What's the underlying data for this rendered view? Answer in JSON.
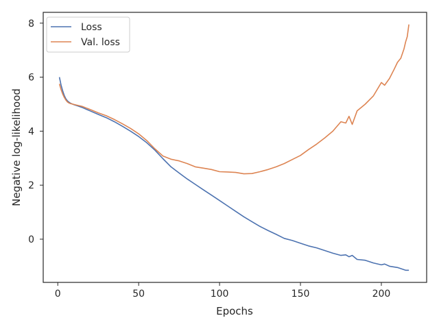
{
  "chart_data": {
    "type": "line",
    "xlabel": "Epochs",
    "ylabel": "Negative log-likelihood",
    "xlim": [
      -9,
      228
    ],
    "ylim": [
      -1.6,
      8.4
    ],
    "xticks": [
      0,
      50,
      100,
      150,
      200
    ],
    "yticks": [
      0,
      2,
      4,
      6,
      8
    ],
    "grid": false,
    "legend": "top-left",
    "series": [
      {
        "name": "Loss",
        "color": "#4c72b0",
        "x": [
          1,
          2,
          3,
          4,
          5,
          6,
          7,
          8,
          10,
          12,
          15,
          20,
          25,
          30,
          35,
          40,
          45,
          50,
          55,
          60,
          65,
          70,
          75,
          80,
          85,
          90,
          95,
          100,
          105,
          110,
          115,
          120,
          125,
          130,
          135,
          140,
          145,
          150,
          155,
          160,
          165,
          170,
          175,
          178,
          180,
          182,
          185,
          190,
          195,
          200,
          202,
          205,
          210,
          215,
          217
        ],
        "y": [
          6.0,
          5.72,
          5.5,
          5.32,
          5.2,
          5.12,
          5.07,
          5.03,
          4.98,
          4.94,
          4.88,
          4.75,
          4.62,
          4.5,
          4.35,
          4.18,
          4.0,
          3.8,
          3.57,
          3.3,
          2.98,
          2.68,
          2.45,
          2.23,
          2.03,
          1.83,
          1.63,
          1.43,
          1.23,
          1.03,
          0.83,
          0.65,
          0.47,
          0.32,
          0.18,
          0.03,
          -0.05,
          -0.15,
          -0.25,
          -0.32,
          -0.42,
          -0.52,
          -0.6,
          -0.58,
          -0.65,
          -0.6,
          -0.75,
          -0.78,
          -0.88,
          -0.95,
          -0.92,
          -1.0,
          -1.05,
          -1.15,
          -1.15
        ]
      },
      {
        "name": "Val. loss",
        "color": "#dd8452",
        "x": [
          1,
          2,
          3,
          4,
          5,
          6,
          7,
          8,
          10,
          12,
          15,
          20,
          25,
          30,
          35,
          40,
          45,
          50,
          55,
          60,
          65,
          70,
          75,
          80,
          85,
          90,
          95,
          100,
          105,
          110,
          115,
          120,
          125,
          130,
          135,
          140,
          145,
          150,
          155,
          160,
          165,
          170,
          175,
          178,
          180,
          182,
          185,
          190,
          195,
          200,
          202,
          205,
          208,
          210,
          212,
          214,
          215,
          216,
          217
        ],
        "y": [
          5.75,
          5.55,
          5.38,
          5.25,
          5.15,
          5.08,
          5.04,
          5.02,
          4.99,
          4.96,
          4.92,
          4.8,
          4.68,
          4.57,
          4.43,
          4.27,
          4.1,
          3.9,
          3.65,
          3.35,
          3.08,
          2.96,
          2.9,
          2.8,
          2.68,
          2.63,
          2.58,
          2.5,
          2.49,
          2.47,
          2.42,
          2.43,
          2.5,
          2.58,
          2.68,
          2.8,
          2.95,
          3.1,
          3.32,
          3.52,
          3.75,
          4.0,
          4.35,
          4.3,
          4.55,
          4.25,
          4.75,
          5.0,
          5.3,
          5.8,
          5.7,
          5.95,
          6.3,
          6.55,
          6.7,
          7.05,
          7.3,
          7.5,
          7.95
        ]
      }
    ]
  }
}
